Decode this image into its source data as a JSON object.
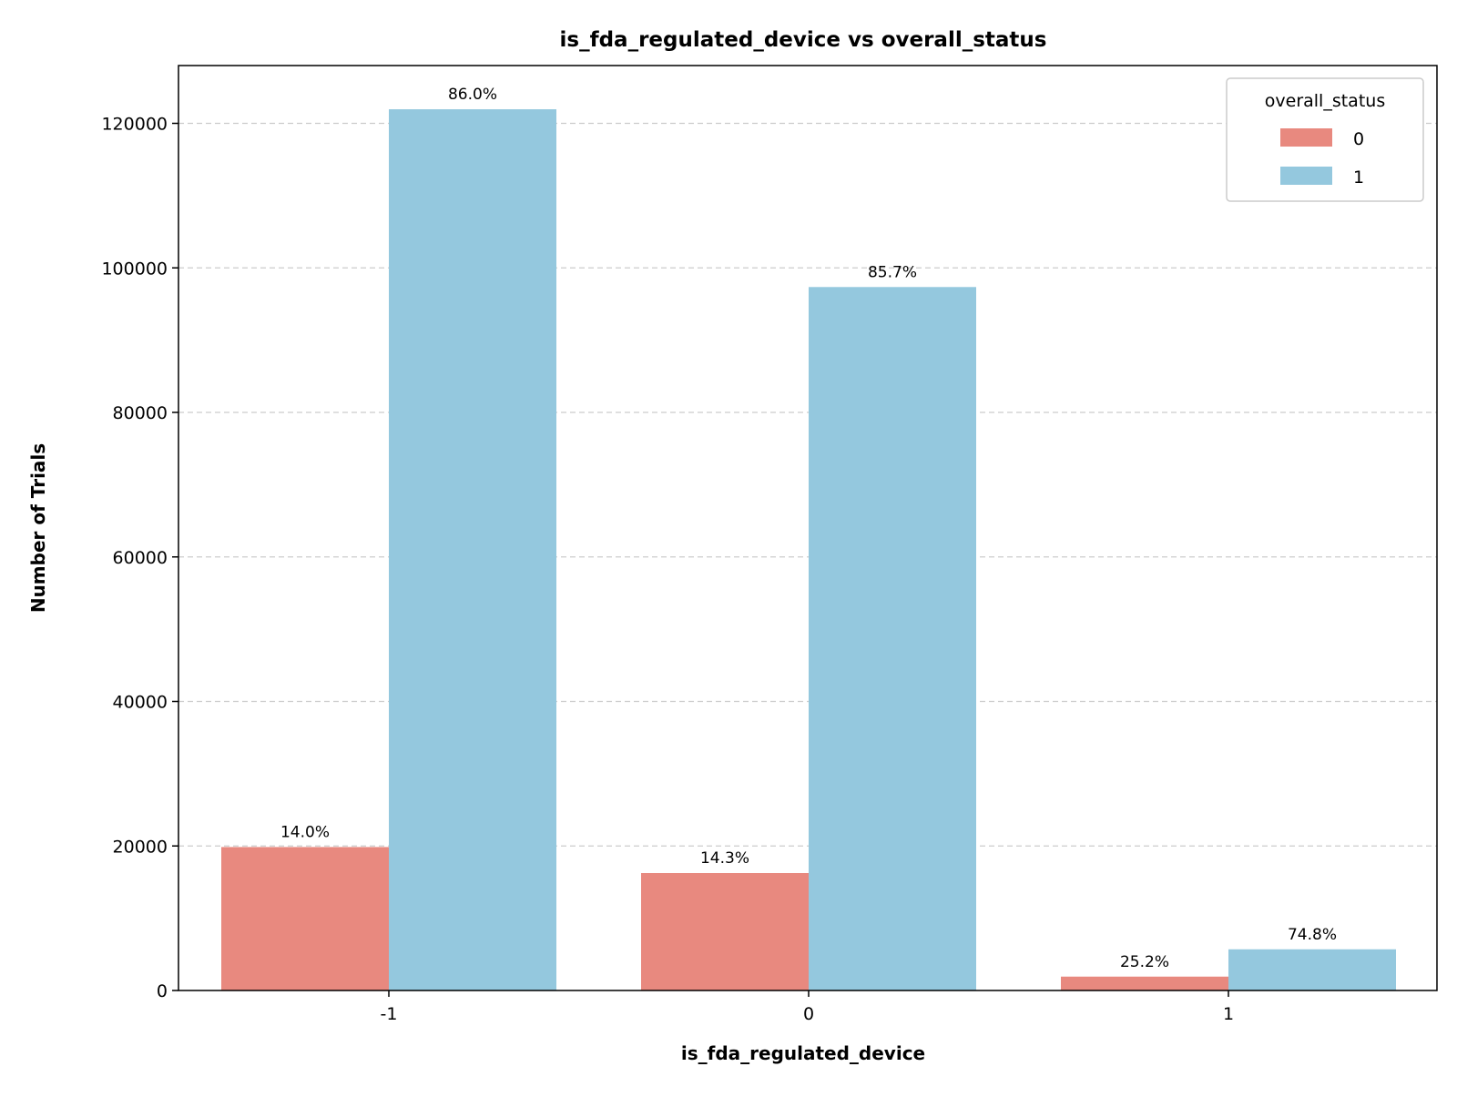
{
  "chart_data": {
    "type": "bar",
    "title": "is_fda_regulated_device vs overall_status",
    "xlabel": "is_fda_regulated_device",
    "ylabel": "Number of Trials",
    "categories": [
      "-1",
      "0",
      "1"
    ],
    "series": [
      {
        "name": "0",
        "color": "#e8897f",
        "values": [
          19850,
          16250,
          1920
        ],
        "labels": [
          "14.0%",
          "14.3%",
          "25.2%"
        ]
      },
      {
        "name": "1",
        "color": "#94c8de",
        "values": [
          121950,
          97350,
          5700
        ],
        "labels": [
          "86.0%",
          "85.7%",
          "74.8%"
        ]
      }
    ],
    "yticks": [
      0,
      20000,
      40000,
      60000,
      80000,
      100000,
      120000
    ],
    "ylim": [
      0,
      128000
    ],
    "grid": "y-dashed",
    "legend": {
      "title": "overall_status",
      "placement": "top-right"
    }
  }
}
